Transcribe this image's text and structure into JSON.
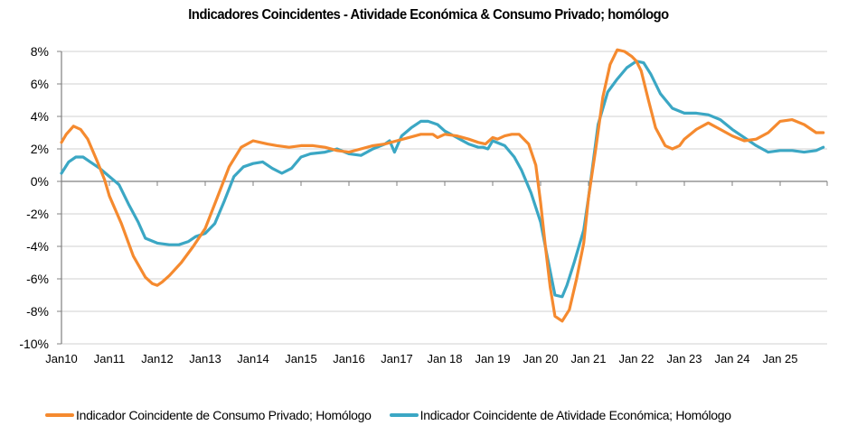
{
  "chart_data": {
    "type": "line",
    "title": "Indicadores Coincidentes - Atividade Económica & Consumo Privado; homólogo",
    "xlabel": "",
    "ylabel": "",
    "ylim": [
      -10,
      8
    ],
    "yticks": [
      8,
      6,
      4,
      2,
      0,
      -2,
      -4,
      -6,
      -8,
      -10
    ],
    "ytick_labels": [
      "8%",
      "6%",
      "4%",
      "2%",
      "0%",
      "-2%",
      "-4%",
      "-6%",
      "-8%",
      "-10%"
    ],
    "xlim": [
      2010.0,
      2026.1
    ],
    "xticks": [
      2010,
      2011,
      2012,
      2013,
      2014,
      2015,
      2016,
      2017,
      2018,
      2019,
      2020,
      2021,
      2022,
      2023,
      2024,
      2025
    ],
    "xtick_labels": [
      "Jan10",
      "Jan11",
      "Jan12",
      "Jan13",
      "Jan14",
      "Jan15",
      "Jan16",
      "Jan17",
      "Jan 18",
      "Jan 19",
      "Jan 20",
      "Jan 21",
      "Jan 22",
      "Jan 23",
      "Jan 24",
      "Jan 25"
    ],
    "grid": true,
    "legend_position": "bottom",
    "series": [
      {
        "name": "Indicador Coincidente de Consumo Privado; Homólogo",
        "color": "#F58A2F",
        "x": [
          2010.0,
          2010.1,
          2010.25,
          2010.4,
          2010.55,
          2010.75,
          2010.9,
          2011.0,
          2011.25,
          2011.5,
          2011.75,
          2011.9,
          2012.0,
          2012.1,
          2012.25,
          2012.5,
          2012.75,
          2013.0,
          2013.25,
          2013.5,
          2013.75,
          2014.0,
          2014.15,
          2014.3,
          2014.5,
          2014.75,
          2015.0,
          2015.25,
          2015.5,
          2015.75,
          2016.0,
          2016.25,
          2016.5,
          2016.75,
          2017.0,
          2017.25,
          2017.5,
          2017.75,
          2017.85,
          2018.0,
          2018.25,
          2018.5,
          2018.7,
          2018.85,
          2019.0,
          2019.1,
          2019.25,
          2019.4,
          2019.55,
          2019.75,
          2019.9,
          2020.0,
          2020.1,
          2020.2,
          2020.3,
          2020.45,
          2020.6,
          2020.75,
          2020.9,
          2021.0,
          2021.15,
          2021.3,
          2021.45,
          2021.6,
          2021.75,
          2021.9,
          2022.0,
          2022.1,
          2022.25,
          2022.4,
          2022.6,
          2022.75,
          2022.9,
          2023.0,
          2023.25,
          2023.5,
          2023.75,
          2024.0,
          2024.25,
          2024.5,
          2024.75,
          2025.0,
          2025.25,
          2025.5,
          2025.75,
          2025.9
        ],
        "values": [
          2.4,
          2.9,
          3.4,
          3.2,
          2.6,
          1.2,
          0.1,
          -0.9,
          -2.6,
          -4.6,
          -5.9,
          -6.3,
          -6.4,
          -6.2,
          -5.8,
          -5.0,
          -4.0,
          -2.9,
          -1.0,
          0.9,
          2.1,
          2.5,
          2.4,
          2.3,
          2.2,
          2.1,
          2.2,
          2.2,
          2.1,
          1.9,
          1.8,
          2.0,
          2.2,
          2.3,
          2.5,
          2.7,
          2.9,
          2.9,
          2.7,
          2.9,
          2.8,
          2.6,
          2.4,
          2.3,
          2.7,
          2.6,
          2.8,
          2.9,
          2.9,
          2.3,
          1.0,
          -1.3,
          -4.0,
          -6.5,
          -8.3,
          -8.6,
          -7.9,
          -6.0,
          -3.8,
          -1.0,
          2.0,
          5.2,
          7.2,
          8.1,
          8.0,
          7.7,
          7.4,
          6.8,
          5.0,
          3.3,
          2.2,
          2.0,
          2.2,
          2.6,
          3.2,
          3.6,
          3.2,
          2.8,
          2.5,
          2.6,
          3.0,
          3.7,
          3.8,
          3.5,
          3.0,
          3.0
        ]
      },
      {
        "name": "Indicador Coincidente de Atividade Económica; Homólogo",
        "color": "#3BA7C4",
        "x": [
          2010.0,
          2010.15,
          2010.3,
          2010.45,
          2010.6,
          2010.8,
          2011.0,
          2011.2,
          2011.4,
          2011.6,
          2011.75,
          2012.0,
          2012.25,
          2012.45,
          2012.65,
          2012.8,
          2013.0,
          2013.2,
          2013.4,
          2013.6,
          2013.8,
          2014.0,
          2014.2,
          2014.4,
          2014.6,
          2014.8,
          2015.0,
          2015.2,
          2015.5,
          2015.75,
          2016.0,
          2016.25,
          2016.5,
          2016.75,
          2016.85,
          2016.95,
          2017.1,
          2017.3,
          2017.5,
          2017.65,
          2017.85,
          2018.0,
          2018.25,
          2018.5,
          2018.7,
          2018.8,
          2018.9,
          2019.0,
          2019.25,
          2019.45,
          2019.6,
          2019.8,
          2020.0,
          2020.15,
          2020.3,
          2020.45,
          2020.55,
          2020.7,
          2020.9,
          2021.0,
          2021.2,
          2021.4,
          2021.6,
          2021.8,
          2022.0,
          2022.15,
          2022.3,
          2022.5,
          2022.75,
          2023.0,
          2023.25,
          2023.5,
          2023.75,
          2024.0,
          2024.25,
          2024.5,
          2024.75,
          2025.0,
          2025.25,
          2025.5,
          2025.75,
          2025.9
        ],
        "values": [
          0.5,
          1.2,
          1.5,
          1.5,
          1.2,
          0.8,
          0.3,
          -0.2,
          -1.4,
          -2.5,
          -3.5,
          -3.8,
          -3.9,
          -3.9,
          -3.7,
          -3.4,
          -3.2,
          -2.6,
          -1.2,
          0.3,
          0.9,
          1.1,
          1.2,
          0.8,
          0.5,
          0.8,
          1.5,
          1.7,
          1.8,
          2.0,
          1.7,
          1.6,
          2.0,
          2.3,
          2.5,
          1.8,
          2.8,
          3.3,
          3.7,
          3.7,
          3.5,
          3.1,
          2.7,
          2.3,
          2.1,
          2.1,
          2.0,
          2.5,
          2.2,
          1.5,
          0.7,
          -0.7,
          -2.5,
          -4.8,
          -7.0,
          -7.1,
          -6.4,
          -5.0,
          -3.0,
          -1.0,
          3.5,
          5.5,
          6.3,
          7.0,
          7.4,
          7.3,
          6.6,
          5.4,
          4.5,
          4.2,
          4.2,
          4.1,
          3.8,
          3.2,
          2.7,
          2.2,
          1.8,
          1.9,
          1.9,
          1.8,
          1.9,
          2.1
        ]
      }
    ]
  }
}
